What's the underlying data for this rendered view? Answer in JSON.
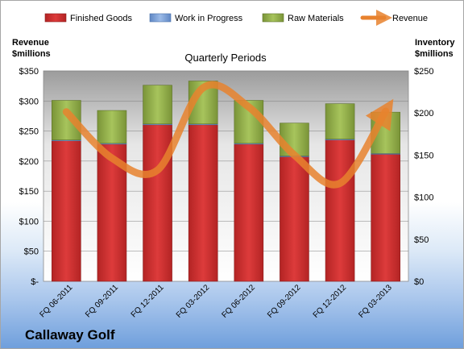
{
  "chart_data": {
    "type": "bar",
    "title": "Quarterly Periods",
    "company": "Callaway Golf",
    "categories": [
      "FQ 06-2011",
      "FQ 09-2011",
      "FQ 12-2011",
      "FQ 03-2012",
      "FQ 06-2012",
      "FQ 09-2012",
      "FQ 12-2012",
      "FQ 03-2013"
    ],
    "stacked": true,
    "series": [
      {
        "name": "Finished Goods",
        "axis": "right",
        "color": "#cc2d2d",
        "values": [
          167,
          163,
          186,
          186,
          163,
          148,
          168,
          151
        ]
      },
      {
        "name": "Work in Progress",
        "axis": "right",
        "color": "#7aa3dd",
        "values": [
          1,
          1,
          1,
          1,
          1,
          1,
          1,
          1
        ]
      },
      {
        "name": "Raw Materials",
        "axis": "right",
        "color": "#93b04d",
        "values": [
          47,
          39,
          46,
          51,
          51,
          39,
          42,
          49
        ]
      },
      {
        "name": "Revenue",
        "axis": "left",
        "type": "line",
        "color": "#e8822e",
        "values": [
          282,
          205,
          185,
          322,
          290,
          210,
          163,
          283
        ]
      }
    ],
    "left_axis": {
      "label_line1": "Revenue",
      "label_line2": "$millions",
      "range": [
        0,
        350
      ],
      "ticks": [
        "$-",
        "$50",
        "$100",
        "$150",
        "$200",
        "$250",
        "$300",
        "$350"
      ]
    },
    "right_axis": {
      "label_line1": "Inventory",
      "label_line2": "$millions",
      "range": [
        0,
        250
      ],
      "ticks": [
        "$0",
        "$50",
        "$100",
        "$150",
        "$200",
        "$250"
      ]
    },
    "legend_position": "top",
    "grid": true
  }
}
